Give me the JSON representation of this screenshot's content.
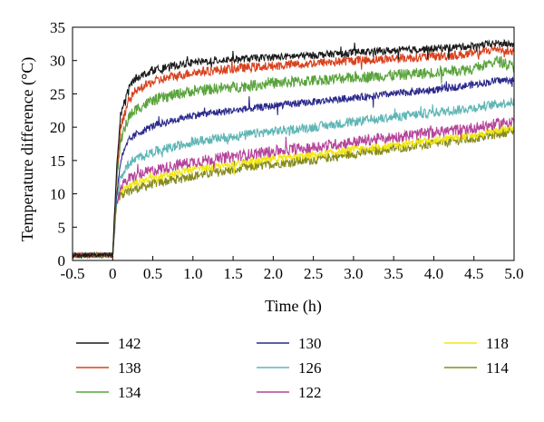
{
  "chart_data": {
    "type": "line",
    "xlabel": "Time (h)",
    "ylabel": "Temperature difference (°C)",
    "xlim": [
      -0.5,
      5.0
    ],
    "ylim": [
      0,
      35
    ],
    "x_ticks": [
      "-0.5",
      "0",
      "0.5",
      "1.0",
      "1.5",
      "2.0",
      "2.5",
      "3.0",
      "3.5",
      "4.0",
      "4.5",
      "5.0"
    ],
    "y_ticks": [
      "0",
      "5",
      "10",
      "15",
      "20",
      "25",
      "30",
      "35"
    ],
    "grid": false,
    "legend_position": "bottom",
    "series": [
      {
        "name": "142",
        "color": "#1a1a1a",
        "x": [
          -0.5,
          0,
          0.05,
          0.1,
          0.2,
          0.3,
          0.5,
          0.75,
          1.0,
          1.5,
          2.0,
          2.5,
          3.0,
          3.5,
          4.0,
          4.5,
          4.8,
          5.0
        ],
        "y": [
          0.8,
          0.8,
          14,
          22,
          26,
          27.5,
          28.5,
          29.2,
          29.7,
          30.2,
          30.5,
          30.8,
          31.2,
          31.5,
          31.8,
          32.2,
          32.6,
          32.4
        ]
      },
      {
        "name": "138",
        "color": "#d8421e",
        "x": [
          -0.5,
          0,
          0.05,
          0.1,
          0.2,
          0.3,
          0.5,
          0.75,
          1.0,
          1.5,
          2.0,
          2.5,
          3.0,
          3.5,
          4.0,
          4.5,
          4.8,
          5.0
        ],
        "y": [
          0.8,
          0.8,
          13,
          20,
          24,
          25.5,
          26.8,
          27.6,
          28.2,
          28.8,
          29.2,
          29.6,
          30.0,
          30.3,
          30.6,
          31.0,
          31.8,
          31.2
        ]
      },
      {
        "name": "134",
        "color": "#5aa33c",
        "x": [
          -0.5,
          0,
          0.05,
          0.1,
          0.2,
          0.3,
          0.5,
          0.75,
          1.0,
          1.5,
          2.0,
          2.5,
          3.0,
          3.5,
          4.0,
          4.5,
          4.8,
          5.0
        ],
        "y": [
          0.8,
          0.8,
          12,
          18,
          21.5,
          22.8,
          24.0,
          24.8,
          25.5,
          26.0,
          26.6,
          27.0,
          27.5,
          27.8,
          28.2,
          28.8,
          30.0,
          29.0
        ]
      },
      {
        "name": "130",
        "color": "#2b2a8c",
        "x": [
          -0.5,
          0,
          0.05,
          0.1,
          0.2,
          0.3,
          0.5,
          0.75,
          1.0,
          1.5,
          2.0,
          2.5,
          3.0,
          3.5,
          4.0,
          4.5,
          4.8,
          5.0
        ],
        "y": [
          0.8,
          0.8,
          10,
          15,
          18,
          19,
          20.2,
          21.0,
          21.8,
          22.5,
          23.2,
          23.8,
          24.4,
          25.0,
          25.6,
          26.4,
          27.0,
          27.0
        ]
      },
      {
        "name": "126",
        "color": "#5fb5b5",
        "x": [
          -0.5,
          0,
          0.05,
          0.1,
          0.2,
          0.3,
          0.5,
          0.75,
          1.0,
          1.5,
          2.0,
          2.5,
          3.0,
          3.5,
          4.0,
          4.5,
          4.8,
          5.0
        ],
        "y": [
          0.8,
          0.8,
          9.5,
          12.5,
          14.5,
          15.3,
          16.3,
          17.0,
          17.8,
          18.6,
          19.4,
          20.0,
          20.8,
          21.5,
          22.2,
          22.9,
          23.5,
          23.8
        ]
      },
      {
        "name": "122",
        "color": "#b5449a",
        "x": [
          -0.5,
          0,
          0.05,
          0.1,
          0.2,
          0.3,
          0.5,
          0.75,
          1.0,
          1.5,
          2.0,
          2.5,
          3.0,
          3.5,
          4.0,
          4.5,
          4.8,
          5.0
        ],
        "y": [
          0.8,
          0.8,
          9.0,
          11.0,
          12.2,
          12.8,
          13.5,
          14.2,
          14.8,
          15.6,
          16.4,
          17.0,
          17.8,
          18.5,
          19.2,
          19.9,
          20.5,
          21.0
        ]
      },
      {
        "name": "118",
        "color": "#f2e80f",
        "x": [
          -0.5,
          0,
          0.05,
          0.1,
          0.2,
          0.3,
          0.5,
          0.75,
          1.0,
          1.5,
          2.0,
          2.5,
          3.0,
          3.5,
          4.0,
          4.5,
          4.8,
          5.0
        ],
        "y": [
          0.8,
          0.8,
          8.8,
          10.4,
          11.2,
          11.7,
          12.4,
          13.0,
          13.6,
          14.4,
          15.2,
          15.8,
          16.6,
          17.3,
          18.0,
          18.8,
          19.5,
          20.0
        ]
      },
      {
        "name": "114",
        "color": "#858a1e",
        "x": [
          -0.5,
          0,
          0.05,
          0.1,
          0.2,
          0.3,
          0.5,
          0.75,
          1.0,
          1.5,
          2.0,
          2.5,
          3.0,
          3.5,
          4.0,
          4.5,
          4.8,
          5.0
        ],
        "y": [
          0.8,
          0.8,
          8.5,
          9.8,
          10.4,
          10.8,
          11.5,
          12.1,
          12.7,
          13.6,
          14.5,
          15.1,
          16.0,
          16.8,
          17.5,
          18.3,
          19.0,
          19.5
        ]
      }
    ]
  }
}
